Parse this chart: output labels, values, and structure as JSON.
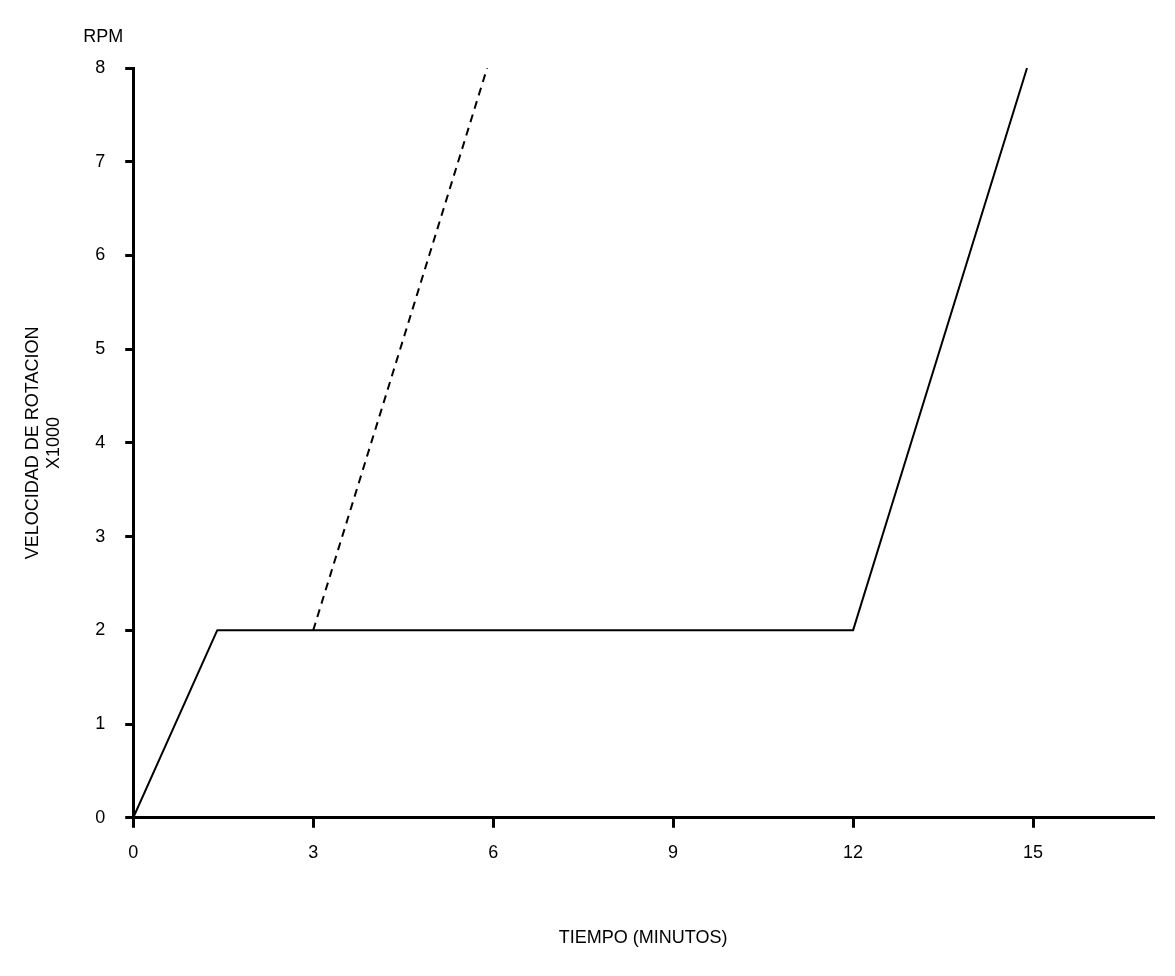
{
  "chart_data": {
    "type": "line",
    "xlabel": "TIEMPO (MINUTOS)",
    "ylabel": "VELOCIDAD DE ROTACION\nX1000",
    "annotations": [
      "RPM"
    ],
    "xlim": [
      0,
      17
    ],
    "xticks": [
      0,
      3,
      6,
      9,
      12,
      15
    ],
    "ylim": [
      0,
      8
    ],
    "yticks": [
      0,
      1,
      2,
      3,
      4,
      5,
      6,
      7,
      8
    ],
    "grid": false,
    "legend": false,
    "marker": "none",
    "series": [
      {
        "color": "#000000",
        "line_style": "solid",
        "x": [
          0,
          1.4,
          12,
          14.9
        ],
        "values": [
          0,
          2,
          2,
          8
        ]
      },
      {
        "color": "#000000",
        "line_style": "dashed",
        "x": [
          3,
          5.9
        ],
        "values": [
          2,
          8
        ]
      }
    ]
  }
}
